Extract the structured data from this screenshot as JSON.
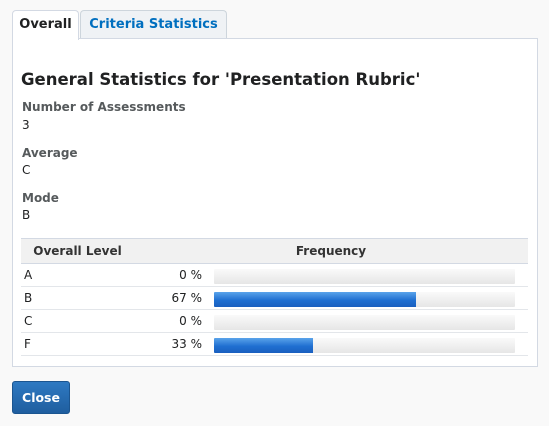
{
  "tabs": [
    {
      "label": "Overall"
    },
    {
      "label": "Criteria Statistics"
    }
  ],
  "title": "General Statistics for 'Presentation Rubric'",
  "stats": {
    "assessments_label": "Number of Assessments",
    "assessments_value": "3",
    "average_label": "Average",
    "average_value": "C",
    "mode_label": "Mode",
    "mode_value": "B"
  },
  "table": {
    "headers": [
      "Overall Level",
      "Frequency"
    ],
    "rows": [
      {
        "level": "A",
        "percent": "0 %",
        "fraction": 0.0
      },
      {
        "level": "B",
        "percent": "67 %",
        "fraction": 0.67
      },
      {
        "level": "C",
        "percent": "0 %",
        "fraction": 0.0
      },
      {
        "level": "F",
        "percent": "33 %",
        "fraction": 0.33
      }
    ]
  },
  "colors": {
    "tab_link": "#006fbf",
    "bar_fill": "#1f6fd1",
    "button": "#2568ad"
  },
  "close_label": "Close"
}
